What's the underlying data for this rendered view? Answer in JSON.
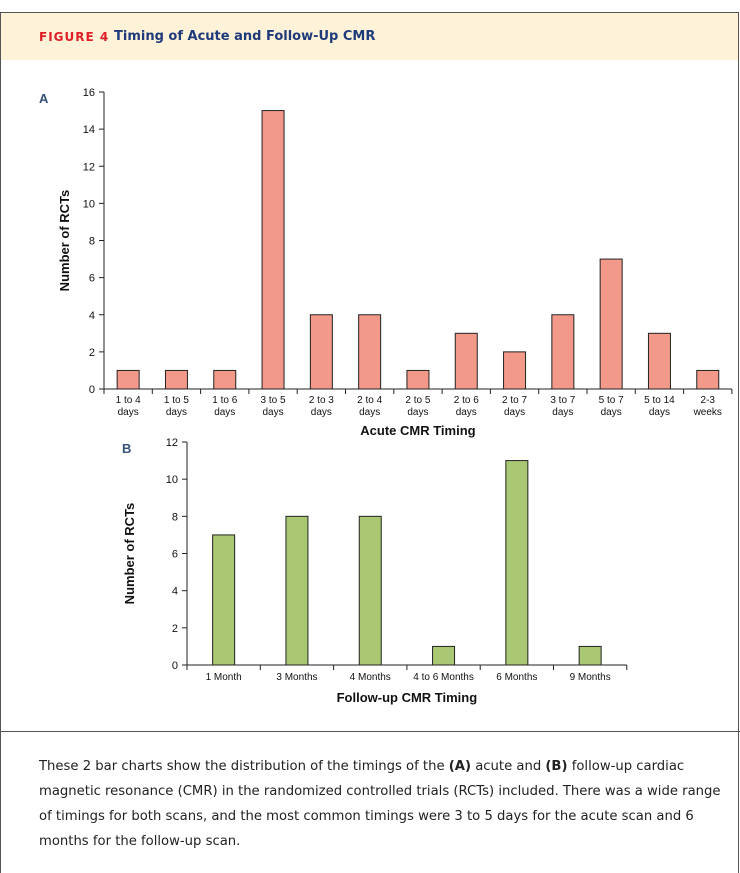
{
  "figure": {
    "label": "FIGURE 4",
    "title": "Timing of Acute and Follow-Up CMR"
  },
  "colors": {
    "header_bg": "#fef3d8",
    "label_red": "#e01e25",
    "title_blue": "#1f3a7a",
    "bar_acute": "#f2998a",
    "bar_followup": "#aac874"
  },
  "chart_data": [
    {
      "panel": "A",
      "type": "bar",
      "categories": [
        [
          "1 to 4",
          "days"
        ],
        [
          "1 to 5",
          "days"
        ],
        [
          "1 to 6",
          "days"
        ],
        [
          "3 to 5",
          "days"
        ],
        [
          "2 to 3",
          "days"
        ],
        [
          "2 to 4",
          "days"
        ],
        [
          "2 to 5",
          "days"
        ],
        [
          "2 to 6",
          "days"
        ],
        [
          "2 to 7",
          "days"
        ],
        [
          "3 to 7",
          "days"
        ],
        [
          "5 to 7",
          "days"
        ],
        [
          "5 to 14",
          "days"
        ],
        [
          "2-3",
          "weeks"
        ]
      ],
      "values": [
        1,
        1,
        1,
        15,
        4,
        4,
        1,
        3,
        2,
        4,
        7,
        3,
        1
      ],
      "xlabel": "Acute CMR Timing",
      "ylabel": "Number of RCTs",
      "ylim": [
        0,
        16
      ],
      "yticks": [
        0,
        2,
        4,
        6,
        8,
        10,
        12,
        14,
        16
      ],
      "grid": false
    },
    {
      "panel": "B",
      "type": "bar",
      "categories": [
        [
          "1 Month"
        ],
        [
          "3 Months"
        ],
        [
          "4 Months"
        ],
        [
          "4 to 6 Months"
        ],
        [
          "6 Months"
        ],
        [
          "9 Months"
        ]
      ],
      "values": [
        7,
        8,
        8,
        1,
        11,
        1
      ],
      "xlabel": "Follow-up CMR Timing",
      "ylabel": "Number of RCTs",
      "ylim": [
        0,
        12
      ],
      "yticks": [
        0,
        2,
        4,
        6,
        8,
        10,
        12
      ],
      "grid": false
    }
  ],
  "caption": {
    "t1": "These 2 bar charts show the distribution of the timings of the ",
    "b1": "(A)",
    "t2": " acute and ",
    "b2": "(B)",
    "t3": " follow-up cardiac magnetic resonance (CMR) in the randomized controlled trials (RCTs) included. There was a wide range of timings for both scans, and the most common timings were 3 to 5 days for the acute scan and 6 months for the follow-up scan."
  }
}
